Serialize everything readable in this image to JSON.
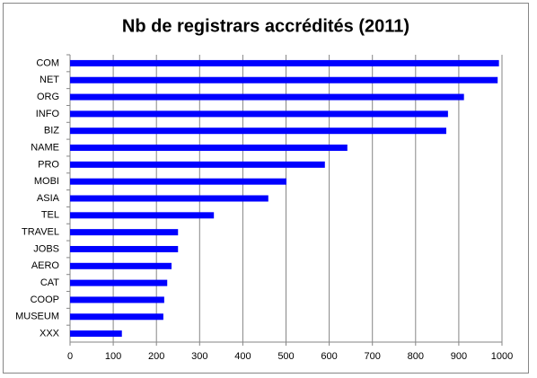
{
  "chart_data": {
    "type": "bar",
    "orientation": "horizontal",
    "title": "Nb de registrars accrédités (2011)",
    "categories": [
      "COM",
      "NET",
      "ORG",
      "INFO",
      "BIZ",
      "NAME",
      "PRO",
      "MOBI",
      "ASIA",
      "TEL",
      "TRAVEL",
      "JOBS",
      "AERO",
      "CAT",
      "COOP",
      "MUSEUM",
      "XXX"
    ],
    "values": [
      993,
      990,
      912,
      875,
      871,
      642,
      590,
      501,
      459,
      333,
      250,
      250,
      235,
      225,
      218,
      216,
      120
    ],
    "color": "#0000ff",
    "xlim": [
      0,
      1000
    ],
    "xticks": [
      0,
      100,
      200,
      300,
      400,
      500,
      600,
      700,
      800,
      900,
      1000
    ],
    "grid": true
  }
}
